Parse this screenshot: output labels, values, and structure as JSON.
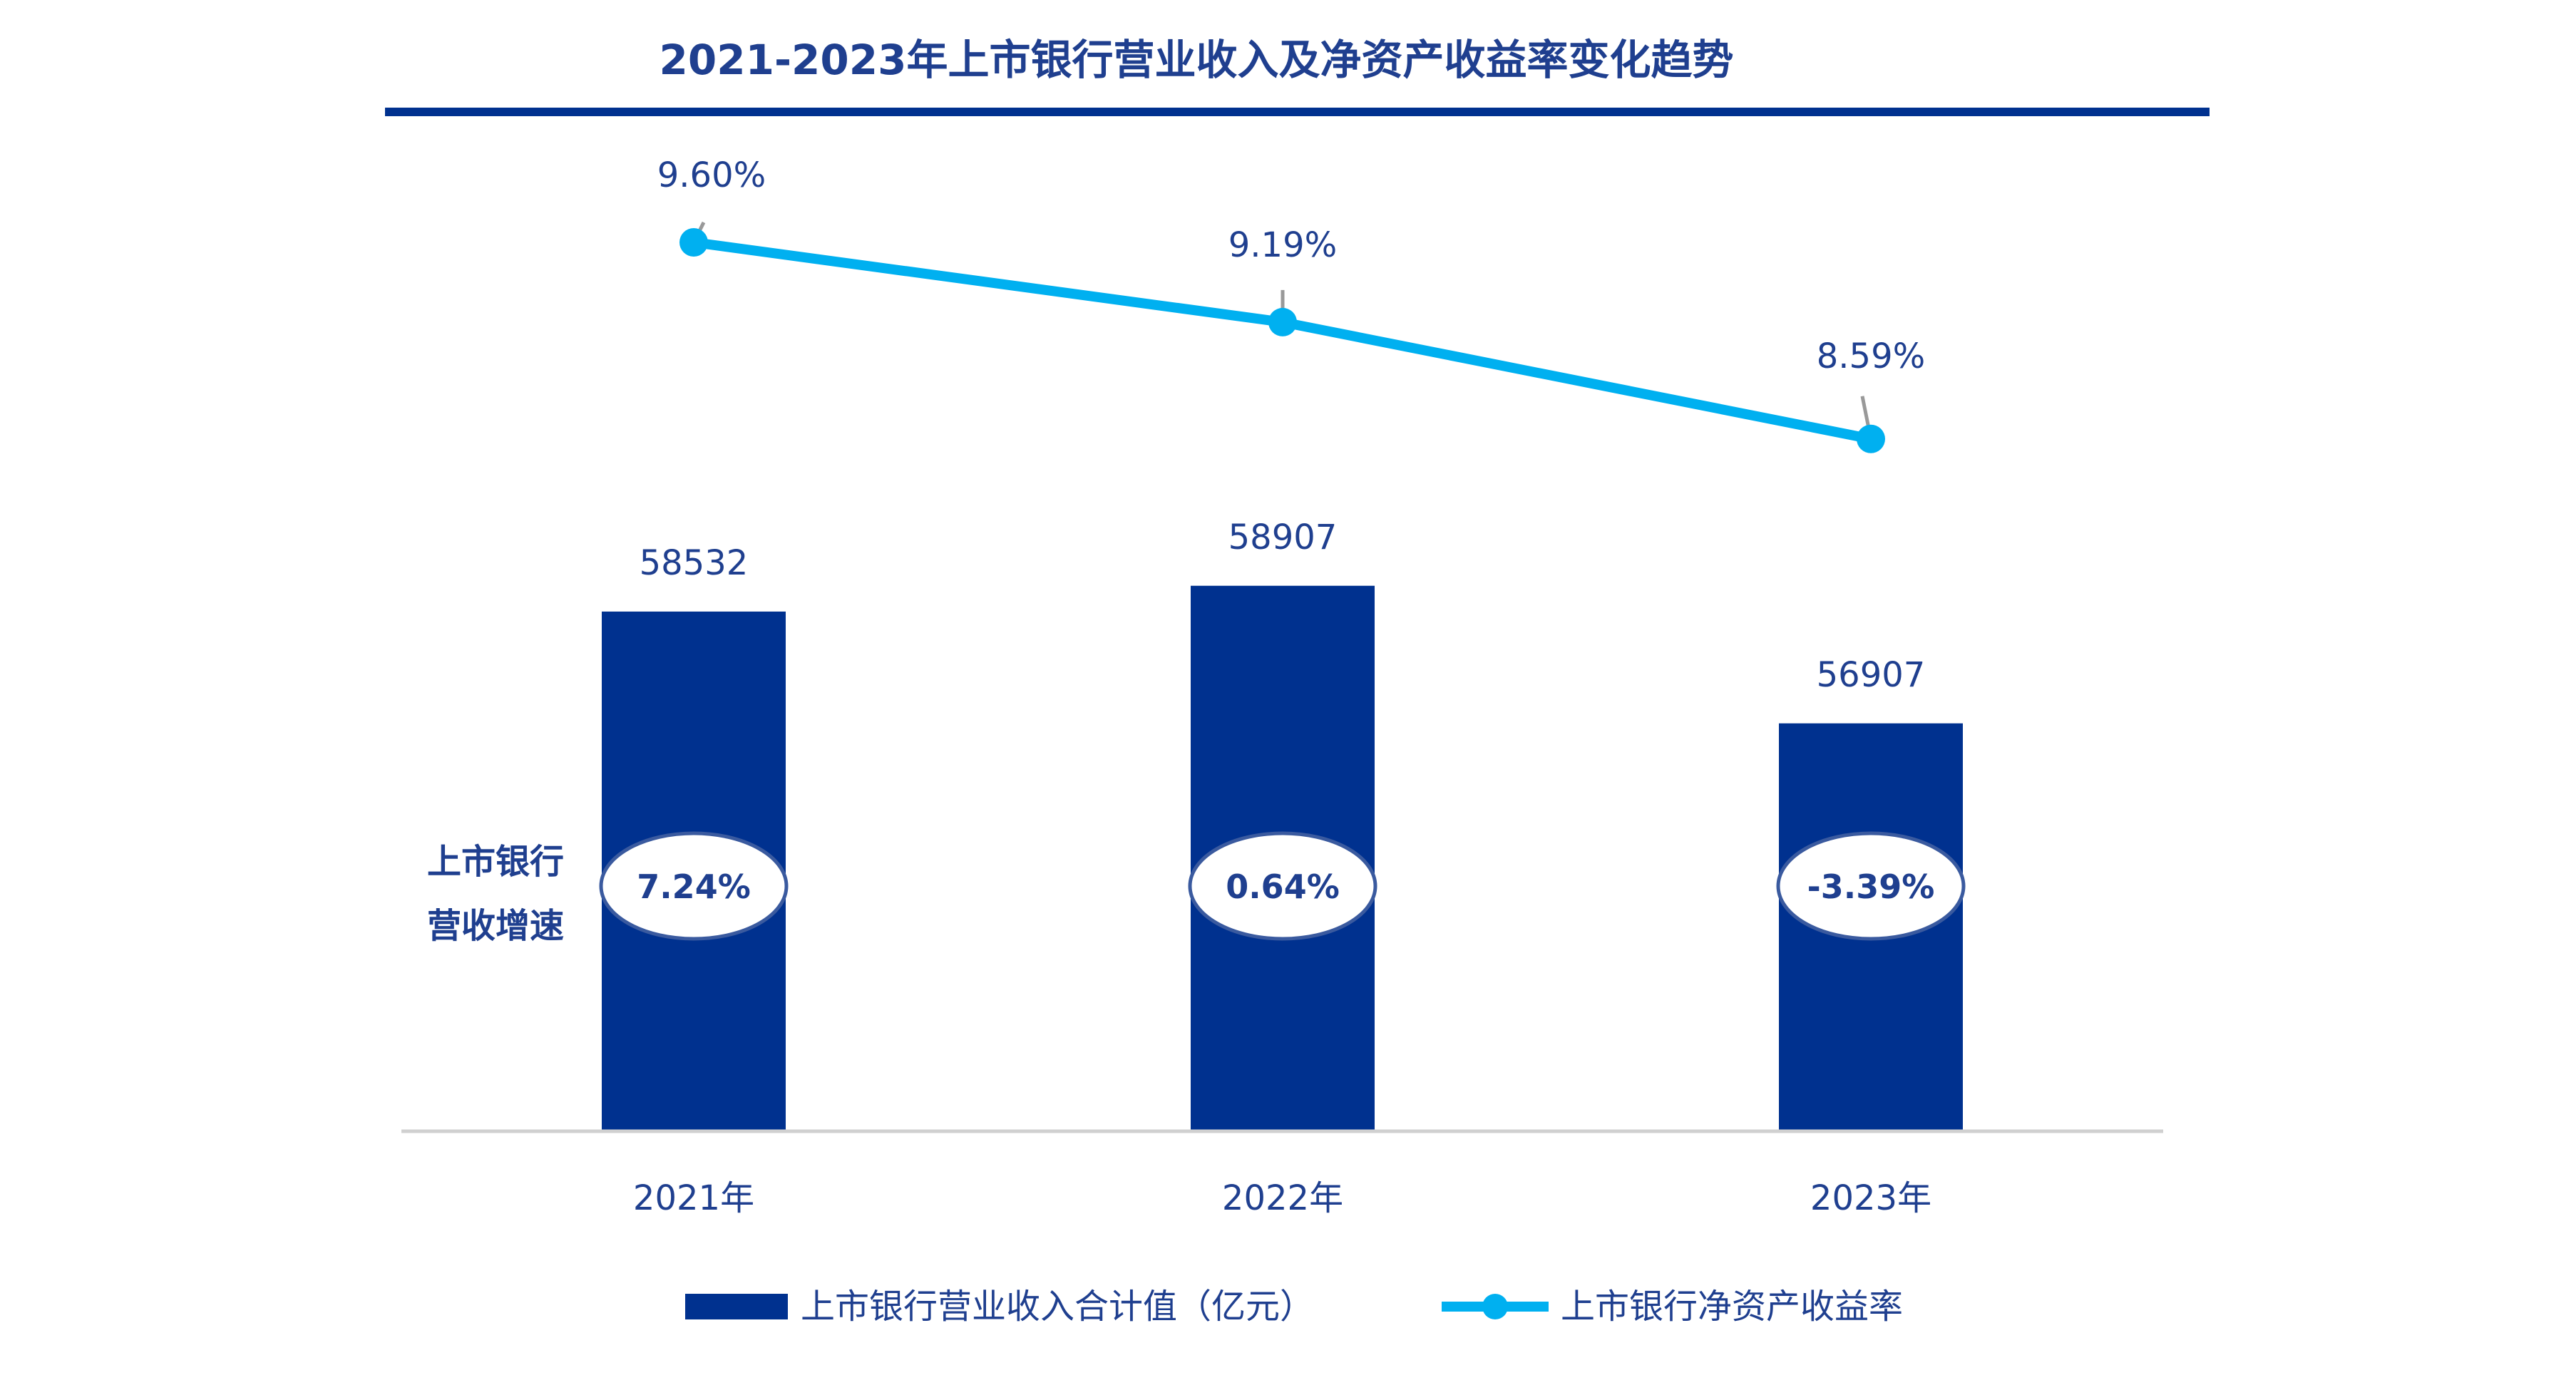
{
  "chart_data": {
    "type": "bar+line",
    "title": "2021-2023年上市银行营业收入及净资产收益率变化趋势",
    "categories": [
      "2021年",
      "2022年",
      "2023年"
    ],
    "series": [
      {
        "name": "上市银行营业收入合计值（亿元）",
        "type": "bar",
        "values": [
          58532,
          58907,
          56907
        ],
        "labels": [
          "58532",
          "58907",
          "56907"
        ],
        "color": "#00318f"
      },
      {
        "name": "上市银行净资产收益率",
        "type": "line",
        "values": [
          9.6,
          9.19,
          8.59
        ],
        "labels": [
          "9.60%",
          "9.19%",
          "8.59%"
        ],
        "color": "#00b0f0"
      }
    ],
    "growth": {
      "label_line1": "上市银行",
      "label_line2": "营收增速",
      "values": [
        7.24,
        0.64,
        -3.39
      ],
      "labels": [
        "7.24%",
        "0.64%",
        "-3.39%"
      ]
    },
    "bar_ylim": [
      50977,
      60000
    ],
    "line_ylim": [
      8.0,
      10.0
    ],
    "grid": false,
    "legend": "bottom"
  }
}
